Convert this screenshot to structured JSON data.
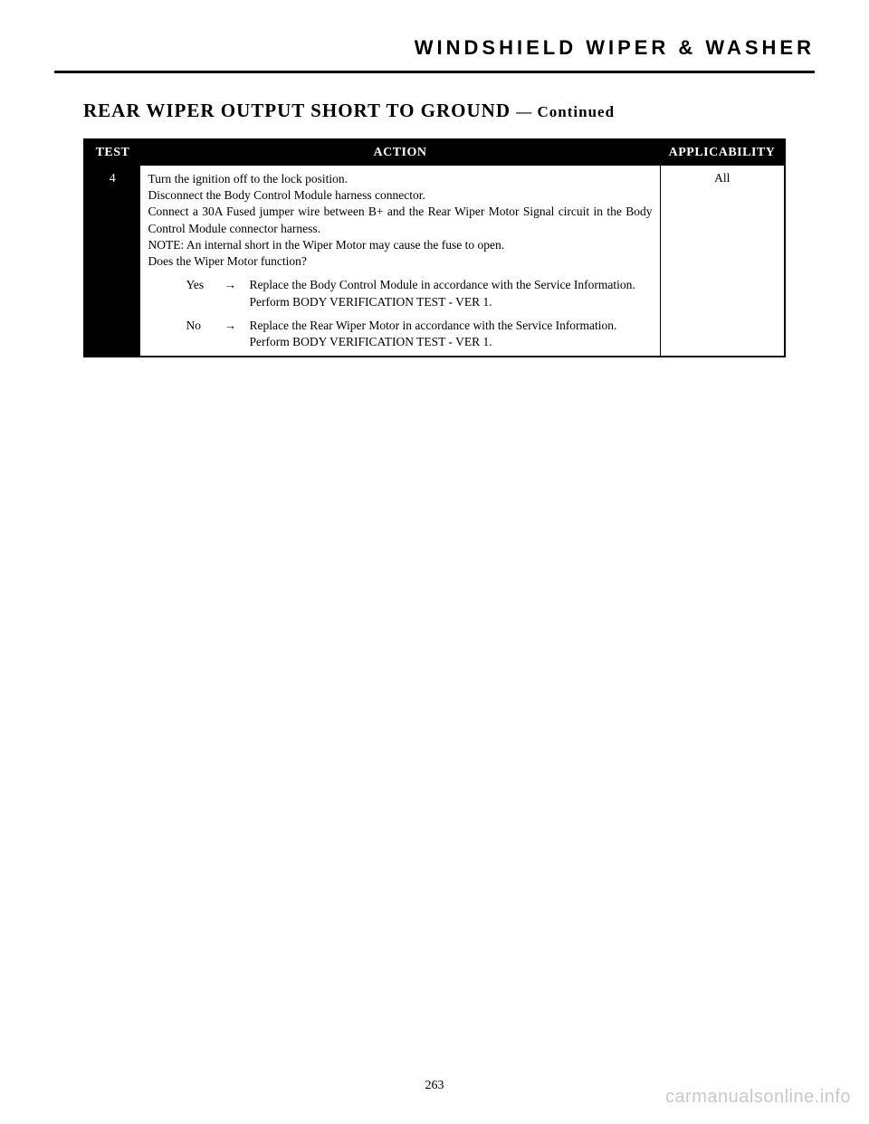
{
  "header": {
    "title": "WINDSHIELD WIPER & WASHER"
  },
  "section": {
    "title": "REAR WIPER OUTPUT SHORT TO GROUND",
    "continued": "— Continued"
  },
  "table": {
    "columns": {
      "test": "TEST",
      "action": "ACTION",
      "applicability": "APPLICABILITY"
    },
    "row": {
      "test_num": "4",
      "applicability": "All",
      "action_lines": {
        "l1": "Turn the ignition off to the lock position.",
        "l2": "Disconnect the Body Control Module harness connector.",
        "l3": "Connect a 30A Fused jumper wire between B+ and the Rear Wiper Motor Signal circuit in the Body Control Module connector harness.",
        "l4": "NOTE: An internal short in the Wiper Motor may cause the fuse to open.",
        "l5": "Does the Wiper Motor function?"
      },
      "yes": {
        "label": "Yes",
        "arrow": "→",
        "t1": "Replace the Body Control Module in accordance with the Service Information.",
        "t2": "Perform BODY VERIFICATION TEST - VER 1."
      },
      "no": {
        "label": "No",
        "arrow": "→",
        "t1": "Replace the Rear Wiper Motor in accordance with the Service Information.",
        "t2": "Perform BODY VERIFICATION TEST - VER 1."
      }
    }
  },
  "page_number": "263",
  "watermark": "carmanualsonline.info"
}
